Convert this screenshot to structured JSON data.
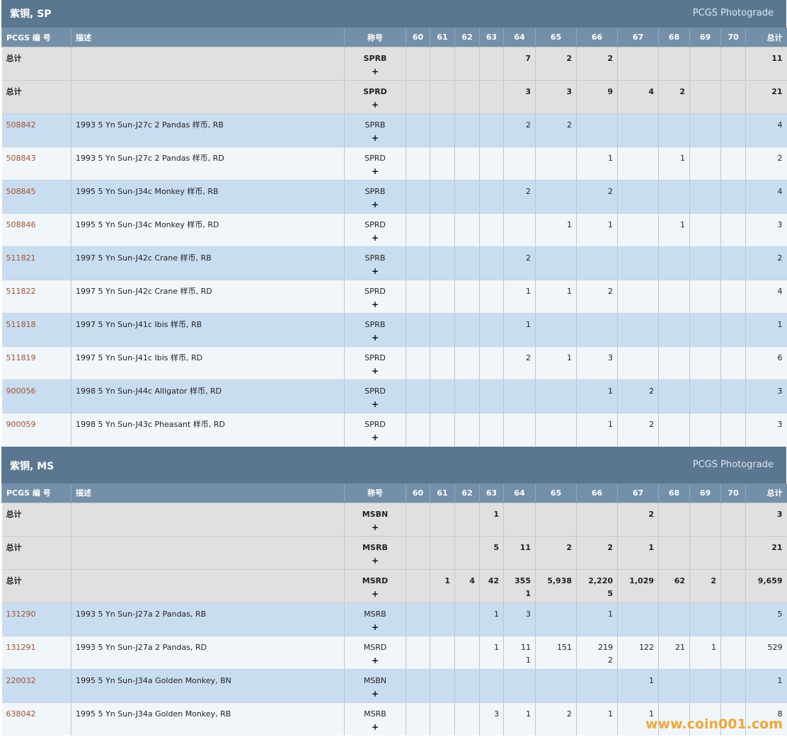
{
  "grade_columns": [
    "60",
    "61",
    "62",
    "63",
    "64",
    "65",
    "66",
    "67",
    "68",
    "69",
    "70"
  ],
  "headers": {
    "code": "PCGS 编 号",
    "description": "描述",
    "designation": "称号",
    "total": "总计"
  },
  "plus_label": "+",
  "sp": {
    "title": "紫铜, SP",
    "photograde": "PCGS Photograde",
    "rows": [
      {
        "type": "total",
        "code": "总计",
        "description": "",
        "designation": "SPRB",
        "grades": [
          "",
          "",
          "",
          "",
          "7",
          "2",
          "2",
          "",
          "",
          "",
          ""
        ],
        "total": "11"
      },
      {
        "type": "total",
        "code": "总计",
        "description": "",
        "designation": "SPRD",
        "grades": [
          "",
          "",
          "",
          "",
          "3",
          "3",
          "9",
          "4",
          "2",
          "",
          ""
        ],
        "total": "21"
      },
      {
        "type": "odd",
        "code": "508842",
        "description": "1993 5 Yn Sun-J27c 2 Pandas 样币, RB",
        "designation": "SPRB",
        "grades": [
          "",
          "",
          "",
          "",
          "2",
          "2",
          "",
          "",
          "",
          "",
          ""
        ],
        "total": "4"
      },
      {
        "type": "even",
        "code": "508843",
        "description": "1993 5 Yn Sun-J27c 2 Pandas 样币, RD",
        "designation": "SPRD",
        "grades": [
          "",
          "",
          "",
          "",
          "",
          "",
          "1",
          "",
          "1",
          "",
          ""
        ],
        "total": "2"
      },
      {
        "type": "odd",
        "code": "508845",
        "description": "1995 5 Yn Sun-J34c Monkey 样币, RB",
        "designation": "SPRB",
        "grades": [
          "",
          "",
          "",
          "",
          "2",
          "",
          "2",
          "",
          "",
          "",
          ""
        ],
        "total": "4"
      },
      {
        "type": "even",
        "code": "508846",
        "description": "1995 5 Yn Sun-J34c Monkey 样币, RD",
        "designation": "SPRD",
        "grades": [
          "",
          "",
          "",
          "",
          "",
          "1",
          "1",
          "",
          "1",
          "",
          ""
        ],
        "total": "3"
      },
      {
        "type": "odd",
        "code": "511821",
        "description": "1997 5 Yn Sun-J42c Crane 样币, RB",
        "designation": "SPRB",
        "grades": [
          "",
          "",
          "",
          "",
          "2",
          "",
          "",
          "",
          "",
          "",
          ""
        ],
        "total": "2"
      },
      {
        "type": "even",
        "code": "511822",
        "description": "1997 5 Yn Sun-J42c Crane 样币, RD",
        "designation": "SPRD",
        "grades": [
          "",
          "",
          "",
          "",
          "1",
          "1",
          "2",
          "",
          "",
          "",
          ""
        ],
        "total": "4"
      },
      {
        "type": "odd",
        "code": "511818",
        "description": "1997 5 Yn Sun-J41c Ibis 样币, RB",
        "designation": "SPRB",
        "grades": [
          "",
          "",
          "",
          "",
          "1",
          "",
          "",
          "",
          "",
          "",
          ""
        ],
        "total": "1"
      },
      {
        "type": "even",
        "code": "511819",
        "description": "1997 5 Yn Sun-J41c Ibis 样币, RD",
        "designation": "SPRD",
        "grades": [
          "",
          "",
          "",
          "",
          "2",
          "1",
          "3",
          "",
          "",
          "",
          ""
        ],
        "total": "6"
      },
      {
        "type": "odd",
        "code": "900056",
        "description": "1998 5 Yn Sun-J44c Alligator 样币, RD",
        "designation": "SPRD",
        "grades": [
          "",
          "",
          "",
          "",
          "",
          "",
          "1",
          "2",
          "",
          "",
          ""
        ],
        "total": "3"
      },
      {
        "type": "even",
        "code": "900059",
        "description": "1998 5 Yn Sun-J43c Pheasant 样币, RD",
        "designation": "SPRD",
        "grades": [
          "",
          "",
          "",
          "",
          "",
          "",
          "1",
          "2",
          "",
          "",
          ""
        ],
        "total": "3"
      }
    ]
  },
  "ms": {
    "title": "紫铜, MS",
    "photograde": "PCGS Photograde",
    "rows": [
      {
        "type": "total",
        "code": "总计",
        "description": "",
        "designation": "MSBN",
        "grades": [
          "",
          "",
          "",
          "1",
          "",
          "",
          "",
          "2",
          "",
          "",
          ""
        ],
        "total": "3"
      },
      {
        "type": "total",
        "code": "总计",
        "description": "",
        "designation": "MSRB",
        "grades": [
          "",
          "",
          "",
          "5",
          "11",
          "2",
          "2",
          "1",
          "",
          "",
          ""
        ],
        "total": "21"
      },
      {
        "type": "total",
        "code": "总计",
        "description": "",
        "designation": "MSRD",
        "grades": [
          "",
          "1",
          "4",
          "42",
          "355\n1",
          "5,938",
          "2,220\n5",
          "1,029",
          "62",
          "2",
          ""
        ],
        "total": "9,659"
      },
      {
        "type": "odd",
        "code": "131290",
        "description": "1993 5 Yn Sun-J27a 2 Pandas, RB",
        "designation": "MSRB",
        "grades": [
          "",
          "",
          "",
          "1",
          "3",
          "",
          "1",
          "",
          "",
          "",
          ""
        ],
        "total": "5"
      },
      {
        "type": "even",
        "code": "131291",
        "description": "1993 5 Yn Sun-J27a 2 Pandas, RD",
        "designation": "MSRD",
        "grades": [
          "",
          "",
          "",
          "1",
          "11\n1",
          "151",
          "219\n2",
          "122",
          "21",
          "1",
          ""
        ],
        "total": "529"
      },
      {
        "type": "odd",
        "code": "220032",
        "description": "1995 5 Yn Sun-J34a Golden Monkey, BN",
        "designation": "MSBN",
        "grades": [
          "",
          "",
          "",
          "",
          "",
          "",
          "",
          "1",
          "",
          "",
          ""
        ],
        "total": "1"
      },
      {
        "type": "even",
        "code": "638042",
        "description": "1995 5 Yn Sun-J34a Golden Monkey, RB",
        "designation": "MSRB",
        "grades": [
          "",
          "",
          "",
          "3",
          "1",
          "2",
          "1",
          "1",
          "",
          "",
          ""
        ],
        "total": "8"
      }
    ]
  },
  "watermark": "www.coin001.com"
}
